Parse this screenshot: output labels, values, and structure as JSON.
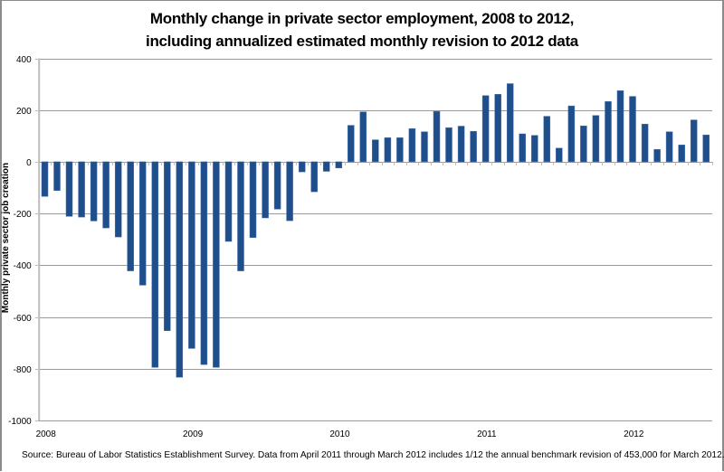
{
  "chart_data": {
    "type": "bar",
    "title": [
      "Monthly change in private sector employment, 2008 to 2012,",
      "including annualized estimated monthly revision to 2012 data"
    ],
    "xlabel": "",
    "ylabel": "Monthly private sector job creation",
    "ylim": [
      -1000,
      400
    ],
    "yticks": [
      400,
      200,
      0,
      -200,
      -400,
      -600,
      -800,
      -1000
    ],
    "xtick_labels": [
      "2008",
      "2009",
      "2010",
      "2011",
      "2012"
    ],
    "grid": true,
    "legend": "none",
    "categories": [
      "Jan 2008",
      "Feb 2008",
      "Mar 2008",
      "Apr 2008",
      "May 2008",
      "Jun 2008",
      "Jul 2008",
      "Aug 2008",
      "Sep 2008",
      "Oct 2008",
      "Nov 2008",
      "Dec 2008",
      "Jan 2009",
      "Feb 2009",
      "Mar 2009",
      "Apr 2009",
      "May 2009",
      "Jun 2009",
      "Jul 2009",
      "Aug 2009",
      "Sep 2009",
      "Oct 2009",
      "Nov 2009",
      "Dec 2009",
      "Jan 2010",
      "Feb 2010",
      "Mar 2010",
      "Apr 2010",
      "May 2010",
      "Jun 2010",
      "Jul 2010",
      "Aug 2010",
      "Sep 2010",
      "Oct 2010",
      "Nov 2010",
      "Dec 2010",
      "Jan 2011",
      "Feb 2011",
      "Mar 2011",
      "Apr 2011",
      "May 2011",
      "Jun 2011",
      "Jul 2011",
      "Aug 2011",
      "Sep 2011",
      "Oct 2011",
      "Nov 2011",
      "Dec 2011",
      "Jan 2012",
      "Feb 2012",
      "Mar 2012",
      "Apr 2012",
      "May 2012",
      "Jun 2012",
      "Jul 2012"
    ],
    "series": [
      {
        "name": "Monthly private sector job creation",
        "color": "#1F4E8C",
        "values": [
          -134,
          -111,
          -211,
          -214,
          -229,
          -256,
          -291,
          -422,
          -477,
          -795,
          -653,
          -833,
          -722,
          -784,
          -795,
          -308,
          -422,
          -293,
          -217,
          -183,
          -228,
          -39,
          -116,
          -37,
          -24,
          141,
          193,
          85,
          93,
          93,
          128,
          116,
          195,
          132,
          138,
          118,
          256,
          261,
          302,
          108,
          102,
          176,
          53,
          216,
          139,
          179,
          233,
          275,
          253,
          146,
          48,
          116,
          65,
          162,
          104
        ]
      }
    ]
  },
  "footer": {
    "source": "Source:  Bureau of Labor Statistics Establishment Survey.  Data from April 2011 through March 2012 includes 1/12 the annual benchmark revision of 453,000 for March 2012."
  },
  "colors": {
    "bar": "#1F4E8C",
    "grid": "#9a9a9a",
    "axis": "#bdbdbd"
  }
}
